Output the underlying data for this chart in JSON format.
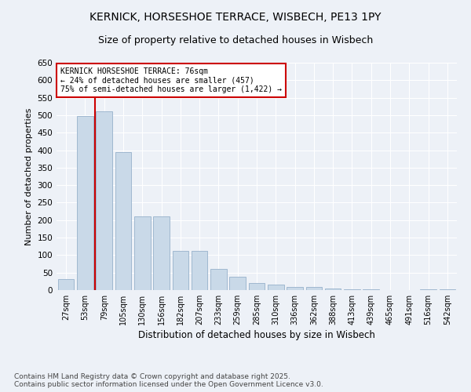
{
  "title_line1": "KERNICK, HORSESHOE TERRACE, WISBECH, PE13 1PY",
  "title_line2": "Size of property relative to detached houses in Wisbech",
  "xlabel": "Distribution of detached houses by size in Wisbech",
  "ylabel": "Number of detached properties",
  "bar_labels": [
    "27sqm",
    "53sqm",
    "79sqm",
    "105sqm",
    "130sqm",
    "156sqm",
    "182sqm",
    "207sqm",
    "233sqm",
    "259sqm",
    "285sqm",
    "310sqm",
    "336sqm",
    "362sqm",
    "388sqm",
    "413sqm",
    "439sqm",
    "465sqm",
    "491sqm",
    "516sqm",
    "542sqm"
  ],
  "bar_values": [
    32,
    497,
    510,
    395,
    210,
    210,
    113,
    113,
    60,
    38,
    20,
    15,
    8,
    10,
    5,
    3,
    3,
    1,
    1,
    2,
    3
  ],
  "bar_color": "#c9d9e8",
  "bar_edge_color": "#a0b8d0",
  "vline_x": 1.5,
  "vline_color": "#cc0000",
  "annotation_text": "KERNICK HORSESHOE TERRACE: 76sqm\n← 24% of detached houses are smaller (457)\n75% of semi-detached houses are larger (1,422) →",
  "annotation_box_color": "#ffffff",
  "annotation_box_edge": "#cc0000",
  "background_color": "#edf1f7",
  "footer_text": "Contains HM Land Registry data © Crown copyright and database right 2025.\nContains public sector information licensed under the Open Government Licence v3.0.",
  "ylim_max": 650,
  "yticks": [
    0,
    50,
    100,
    150,
    200,
    250,
    300,
    350,
    400,
    450,
    500,
    550,
    600,
    650
  ]
}
